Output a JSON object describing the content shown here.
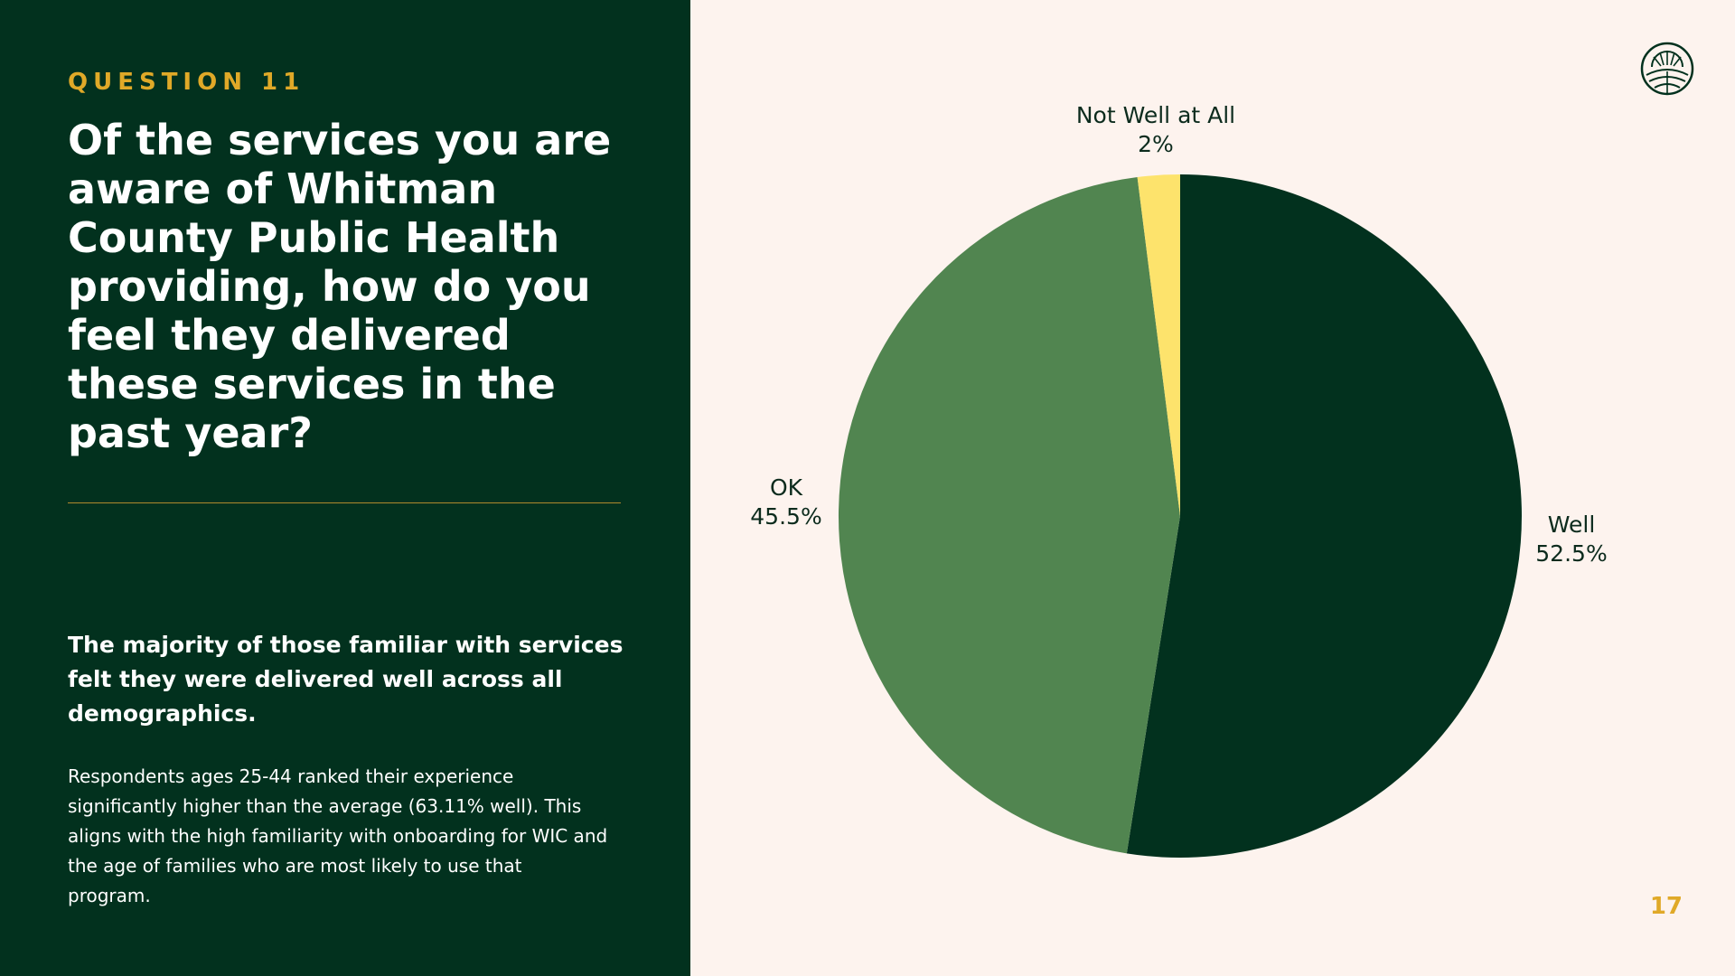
{
  "slide": {
    "eyebrow": "QUESTION 11",
    "question": "Of the services you are aware of Whitman County Public Health providing, how do you feel they delivered these services in the past year?",
    "key_finding": "The majority of those familiar with services felt they were delivered well across all demographics.",
    "body": "Respondents ages 25-44 ranked their experience significantly higher than the average (63.11% well). This aligns with the high familiarity with onboarding for WIC and the age of families who are most likely to use that program.",
    "page_number": "17",
    "logo_icon": "sun-over-fields-logo-icon"
  },
  "colors": {
    "panel_bg": "#02311e",
    "page_bg": "#fdf3ee",
    "accent": "#e0a928"
  },
  "chart_data": {
    "type": "pie",
    "start_angle_deg": 0,
    "direction": "clockwise",
    "slices": [
      {
        "label": "Well",
        "value": 52.5,
        "value_label": "52.5%",
        "color": "#02311e"
      },
      {
        "label": "OK",
        "value": 45.5,
        "value_label": "45.5%",
        "color": "#518550"
      },
      {
        "label": "Not Well at All",
        "value": 2,
        "value_label": "2%",
        "color": "#fde36c"
      }
    ]
  }
}
